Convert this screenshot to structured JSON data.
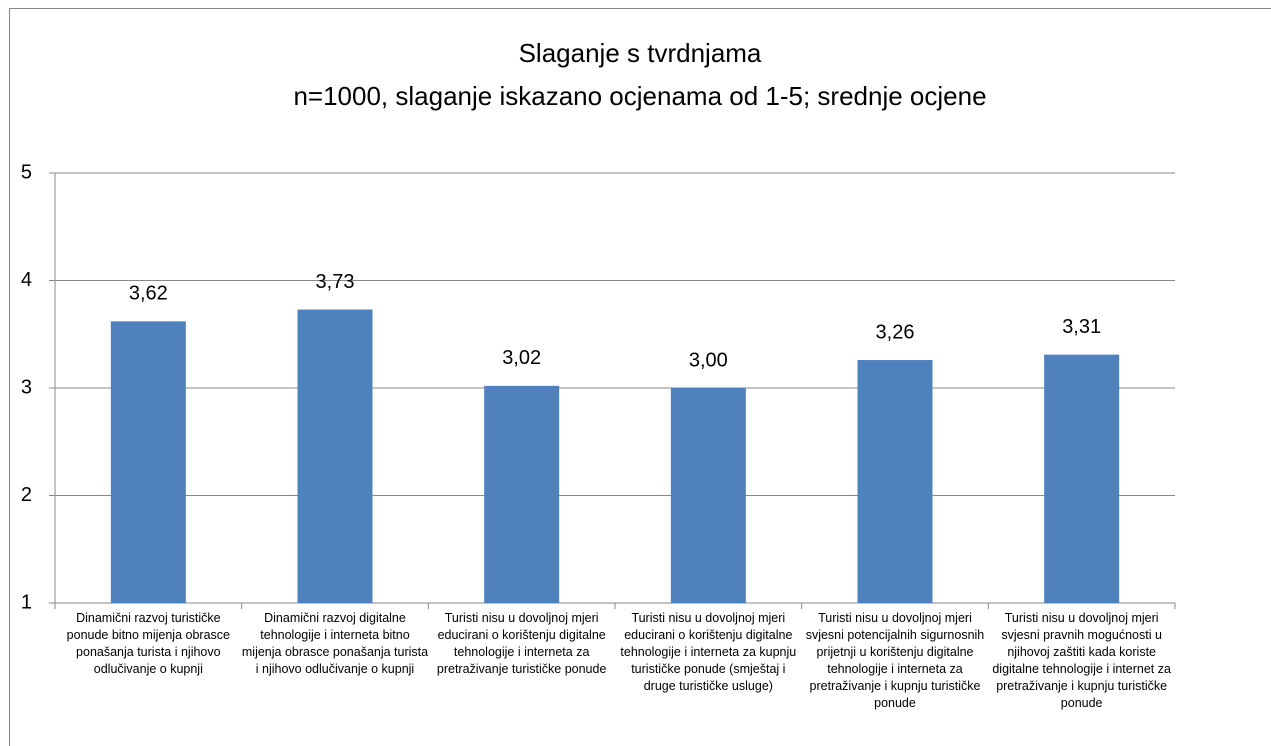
{
  "chart_data": {
    "type": "bar",
    "title": "Slaganje s tvrdnjama",
    "subtitle": "n=1000, slaganje iskazano ocjenama od 1-5; srednje ocjene",
    "categories": [
      "Dinamični razvoj turističke ponude bitno mijenja obrasce ponašanja turista i njihovo odlučivanje o kupnji",
      "Dinamični razvoj digitalne tehnologije i interneta bitno mijenja obrasce ponašanja turista i njihovo odlučivanje o kupnji",
      "Turisti nisu u dovoljnoj mjeri educirani o korištenju digitalne tehnologije i interneta za pretraživanje turističke ponude",
      "Turisti nisu u dovoljnoj mjeri educirani o korištenju digitalne tehnologije i interneta za kupnju turističke ponude (smještaj i druge turističke usluge)",
      "Turisti nisu u dovoljnoj mjeri svjesni potencijalnih sigurnosnih prijetnji u korištenju digitalne tehnologije i interneta za pretraživanje i kupnju turističke ponude",
      "Turisti nisu u dovoljnoj mjeri svjesni pravnih mogućnosti u njihovoj zaštiti kada koriste digitalne tehnologije i internet za pretraživanje i kupnju turističke ponude"
    ],
    "values": [
      3.62,
      3.73,
      3.02,
      3.0,
      3.26,
      3.31
    ],
    "value_labels": [
      "3,62",
      "3,73",
      "3,02",
      "3,00",
      "3,26",
      "3,31"
    ],
    "color": "#4f81bd",
    "ylim": [
      1,
      5
    ],
    "yticks": [
      1,
      2,
      3,
      4,
      5
    ],
    "grid": true
  }
}
